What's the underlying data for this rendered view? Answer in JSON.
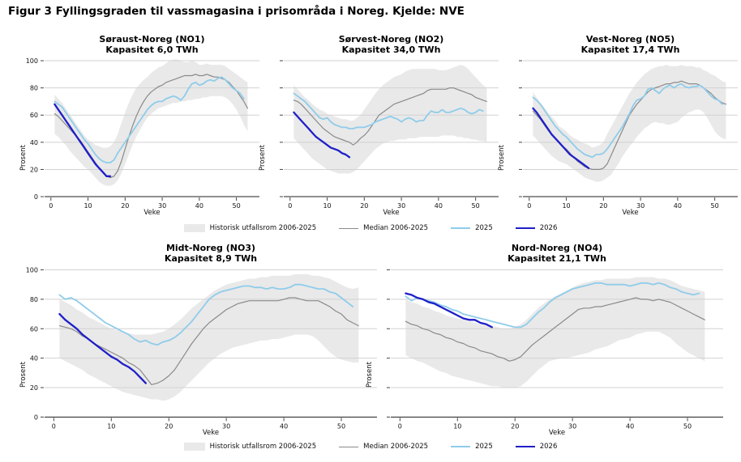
{
  "figure_title": "Figur 3 Fyllingsgraden til vassmagasina i prisområda i Noreg. Kjelde: NVE",
  "axis": {
    "x_label": "Veke",
    "y_label": "Prosent",
    "x_ticks": [
      0,
      10,
      20,
      30,
      40,
      50
    ],
    "y_ticks": [
      0,
      20,
      40,
      60,
      80,
      100
    ],
    "y_range": [
      0,
      100
    ],
    "grid": "horizontal"
  },
  "colors": {
    "band": "#e9e9e9",
    "median": "#8a8a8a",
    "y2025": "#8fccea",
    "y2026": "#1f1fc8",
    "grid": "#d2d2d2",
    "axis_line": "#222222"
  },
  "legend": {
    "items": [
      {
        "label": "Historisk utfallsrom 2006-2025",
        "swatch": "band"
      },
      {
        "label": "Median 2006-2025",
        "swatch": "median"
      },
      {
        "label": "2025",
        "swatch": "y2025"
      },
      {
        "label": "2026",
        "swatch": "y2026"
      }
    ]
  },
  "chart_data": [
    {
      "type": "line+band",
      "title": "Søraust-Noreg (NO1)",
      "subtitle": "Kapasitet 6,0 TWh",
      "week_start": 1,
      "show_y_labels": true,
      "band_lower": [
        46,
        44,
        41,
        38,
        34,
        31,
        28,
        25,
        22,
        20,
        17,
        14,
        11,
        9,
        8,
        8,
        9,
        12,
        17,
        24,
        31,
        38,
        44,
        49,
        54,
        58,
        61,
        63,
        65,
        66,
        67,
        68,
        69,
        69,
        70,
        70,
        71,
        71,
        72,
        72,
        73,
        73,
        74,
        74,
        74,
        74,
        73,
        71,
        68,
        64,
        59,
        53,
        48
      ],
      "band_upper": [
        75,
        72,
        69,
        65,
        61,
        57,
        53,
        49,
        45,
        42,
        40,
        38,
        37,
        36,
        36,
        37,
        40,
        46,
        54,
        62,
        69,
        75,
        80,
        83,
        86,
        88,
        91,
        93,
        95,
        96,
        98,
        100,
        101,
        101,
        100,
        99,
        99,
        100,
        99,
        97,
        97,
        98,
        97,
        97,
        97,
        97,
        96,
        94,
        92,
        90,
        88,
        86,
        84
      ],
      "median": [
        61,
        59,
        56,
        53,
        50,
        47,
        44,
        41,
        37,
        33,
        29,
        25,
        21,
        18,
        15,
        14,
        15,
        19,
        26,
        35,
        44,
        52,
        59,
        65,
        70,
        74,
        77,
        79,
        81,
        82,
        84,
        85,
        86,
        87,
        88,
        89,
        89,
        89,
        90,
        89,
        89,
        90,
        89,
        88,
        88,
        87,
        86,
        84,
        81,
        78,
        74,
        70,
        65
      ],
      "y2025": [
        70,
        68,
        66,
        62,
        58,
        54,
        50,
        46,
        42,
        39,
        35,
        31,
        28,
        26,
        25,
        25,
        27,
        32,
        36,
        40,
        44,
        48,
        52,
        56,
        60,
        64,
        67,
        69,
        70,
        70,
        72,
        73,
        74,
        73,
        71,
        74,
        79,
        83,
        84,
        82,
        83,
        85,
        86,
        85,
        87,
        88,
        86,
        83,
        80,
        78,
        76,
        72
      ],
      "y2026": [
        68,
        64,
        60,
        56,
        52,
        48,
        44,
        40,
        36,
        32,
        28,
        24,
        21,
        18,
        15,
        15
      ]
    },
    {
      "type": "line+band",
      "title": "Sørvest-Noreg (NO2)",
      "subtitle": "Kapasitet 34,0 TWh",
      "week_start": 1,
      "show_y_labels": false,
      "band_lower": [
        43,
        40,
        37,
        34,
        31,
        28,
        26,
        24,
        22,
        20,
        19,
        18,
        17,
        17,
        17,
        17,
        18,
        20,
        23,
        26,
        29,
        32,
        35,
        37,
        39,
        40,
        41,
        41,
        42,
        42,
        42,
        43,
        43,
        43,
        44,
        44,
        44,
        44,
        44,
        44,
        45,
        45,
        45,
        45,
        44,
        44,
        43,
        43,
        42,
        42,
        41,
        41,
        40
      ],
      "band_upper": [
        82,
        79,
        76,
        73,
        71,
        68,
        66,
        64,
        63,
        61,
        60,
        59,
        58,
        57,
        57,
        56,
        56,
        58,
        60,
        64,
        68,
        72,
        76,
        79,
        82,
        84,
        86,
        88,
        89,
        90,
        92,
        93,
        94,
        94,
        94,
        94,
        94,
        94,
        94,
        93,
        93,
        93,
        94,
        95,
        96,
        97,
        96,
        94,
        91,
        88,
        85,
        82,
        80
      ],
      "median": [
        71,
        70,
        68,
        65,
        62,
        59,
        56,
        53,
        50,
        48,
        46,
        44,
        43,
        42,
        41,
        40,
        38,
        40,
        43,
        45,
        48,
        52,
        56,
        60,
        62,
        64,
        66,
        68,
        69,
        70,
        71,
        72,
        73,
        74,
        75,
        76,
        78,
        79,
        79,
        79,
        79,
        79,
        80,
        80,
        79,
        78,
        77,
        76,
        75,
        73,
        72,
        71,
        70
      ],
      "y2025": [
        76,
        74,
        72,
        70,
        67,
        64,
        61,
        58,
        57,
        58,
        55,
        53,
        52,
        51,
        51,
        50,
        50,
        51,
        51,
        51,
        52,
        53,
        55,
        56,
        57,
        58,
        59,
        58,
        57,
        55,
        57,
        58,
        57,
        55,
        56,
        56,
        60,
        63,
        62,
        62,
        64,
        62,
        62,
        63,
        64,
        65,
        64,
        62,
        61,
        62,
        64,
        63
      ],
      "y2026": [
        62,
        59,
        56,
        53,
        50,
        47,
        44,
        42,
        40,
        38,
        36,
        35,
        34,
        32,
        31,
        29
      ]
    },
    {
      "type": "line+band",
      "title": "Vest-Noreg (NO5)",
      "subtitle": "Kapasitet 17,4 TWh",
      "week_start": 1,
      "show_y_labels": false,
      "band_lower": [
        45,
        42,
        39,
        36,
        33,
        30,
        28,
        26,
        25,
        24,
        22,
        20,
        18,
        16,
        14,
        13,
        12,
        11,
        11,
        12,
        14,
        16,
        20,
        24,
        29,
        33,
        37,
        40,
        44,
        47,
        50,
        52,
        54,
        55,
        54,
        54,
        53,
        53,
        54,
        55,
        58,
        60,
        62,
        63,
        64,
        64,
        62,
        58,
        53,
        48,
        45,
        43,
        42
      ],
      "band_upper": [
        77,
        73,
        69,
        66,
        62,
        59,
        56,
        52,
        50,
        48,
        45,
        43,
        42,
        40,
        39,
        38,
        36,
        37,
        38,
        40,
        46,
        51,
        56,
        61,
        66,
        71,
        76,
        80,
        84,
        87,
        90,
        92,
        94,
        95,
        96,
        96,
        97,
        96,
        96,
        96,
        97,
        96,
        96,
        96,
        95,
        95,
        93,
        92,
        90,
        89,
        87,
        85,
        84
      ],
      "median": [
        63,
        60,
        57,
        53,
        49,
        46,
        43,
        40,
        37,
        35,
        32,
        29,
        26,
        24,
        22,
        21,
        20,
        20,
        20,
        21,
        24,
        30,
        36,
        42,
        48,
        54,
        60,
        64,
        68,
        71,
        74,
        77,
        79,
        80,
        81,
        82,
        83,
        83,
        84,
        84,
        85,
        84,
        83,
        83,
        83,
        82,
        80,
        78,
        76,
        73,
        71,
        69,
        68
      ],
      "y2025": [
        73,
        71,
        68,
        64,
        60,
        56,
        52,
        49,
        46,
        44,
        41,
        38,
        35,
        33,
        31,
        30,
        29,
        31,
        31,
        32,
        35,
        39,
        43,
        47,
        51,
        56,
        61,
        67,
        71,
        72,
        74,
        79,
        80,
        78,
        76,
        79,
        81,
        82,
        80,
        82,
        83,
        81,
        80,
        81,
        81,
        82,
        80,
        77,
        74,
        72,
        71,
        68
      ],
      "y2026": [
        65,
        62,
        58,
        54,
        50,
        46,
        43,
        40,
        37,
        34,
        31,
        29,
        27,
        25,
        23,
        21
      ]
    },
    {
      "type": "line+band",
      "title": "Midt-Noreg (NO3)",
      "subtitle": "Kapasitet 8,9 TWh",
      "week_start": 1,
      "show_y_labels": true,
      "band_lower": [
        40,
        38,
        36,
        34,
        32,
        29,
        27,
        25,
        23,
        21,
        19,
        17,
        16,
        15,
        14,
        13,
        12,
        12,
        11,
        12,
        14,
        17,
        21,
        25,
        29,
        33,
        37,
        40,
        43,
        45,
        47,
        48,
        49,
        50,
        51,
        52,
        52,
        53,
        53,
        54,
        55,
        56,
        56,
        56,
        55,
        52,
        48,
        44,
        41,
        39,
        38,
        37,
        37
      ],
      "band_upper": [
        80,
        78,
        76,
        73,
        71,
        68,
        66,
        64,
        62,
        60,
        59,
        58,
        57,
        56,
        56,
        56,
        56,
        57,
        58,
        60,
        63,
        66,
        70,
        74,
        77,
        80,
        83,
        86,
        88,
        90,
        91,
        92,
        93,
        94,
        94,
        95,
        95,
        96,
        96,
        96,
        96,
        97,
        97,
        97,
        96,
        96,
        95,
        94,
        92,
        90,
        88,
        87,
        88
      ],
      "median": [
        62,
        61,
        60,
        58,
        55,
        53,
        50,
        48,
        46,
        44,
        42,
        40,
        37,
        35,
        32,
        27,
        22,
        23,
        25,
        28,
        32,
        38,
        44,
        50,
        55,
        60,
        64,
        67,
        70,
        73,
        75,
        77,
        78,
        79,
        79,
        79,
        79,
        79,
        79,
        80,
        81,
        81,
        80,
        79,
        79,
        79,
        77,
        75,
        72,
        70,
        66,
        64,
        62
      ],
      "y2025": [
        83,
        80,
        81,
        79,
        76,
        73,
        70,
        67,
        64,
        62,
        60,
        58,
        56,
        53,
        51,
        52,
        50,
        49,
        51,
        52,
        54,
        57,
        61,
        65,
        70,
        75,
        80,
        83,
        85,
        86,
        87,
        88,
        89,
        89,
        88,
        88,
        87,
        88,
        87,
        87,
        88,
        90,
        90,
        89,
        88,
        87,
        87,
        85,
        84,
        81,
        78,
        75
      ],
      "y2026": [
        70,
        66,
        63,
        60,
        56,
        53,
        50,
        47,
        44,
        41,
        39,
        36,
        34,
        31,
        27,
        23
      ]
    },
    {
      "type": "line+band",
      "title": "Nord-Noreg (NO4)",
      "subtitle": "Kapasitet 21,1 TWh",
      "week_start": 1,
      "show_y_labels": false,
      "band_lower": [
        42,
        40,
        38,
        37,
        35,
        33,
        31,
        30,
        28,
        27,
        26,
        25,
        24,
        23,
        22,
        21,
        21,
        20,
        20,
        20,
        21,
        24,
        28,
        32,
        35,
        38,
        39,
        40,
        40,
        41,
        42,
        43,
        44,
        46,
        47,
        48,
        50,
        52,
        53,
        54,
        56,
        57,
        58,
        58,
        58,
        56,
        54,
        50,
        47,
        44,
        42,
        40,
        38
      ],
      "band_upper": [
        80,
        78,
        77,
        75,
        74,
        72,
        71,
        69,
        68,
        67,
        66,
        65,
        64,
        63,
        62,
        62,
        61,
        60,
        60,
        61,
        63,
        66,
        70,
        74,
        77,
        80,
        82,
        84,
        86,
        88,
        90,
        91,
        92,
        93,
        93,
        94,
        94,
        94,
        94,
        94,
        95,
        95,
        95,
        95,
        94,
        94,
        93,
        91,
        89,
        88,
        87,
        86,
        85
      ],
      "median": [
        65,
        63,
        62,
        60,
        59,
        57,
        56,
        54,
        53,
        51,
        50,
        48,
        47,
        45,
        44,
        43,
        41,
        40,
        38,
        39,
        41,
        45,
        49,
        52,
        55,
        58,
        61,
        64,
        67,
        70,
        73,
        74,
        74,
        75,
        75,
        76,
        77,
        78,
        79,
        80,
        81,
        80,
        80,
        79,
        80,
        79,
        78,
        76,
        74,
        72,
        70,
        68,
        66
      ],
      "y2025": [
        82,
        79,
        81,
        80,
        79,
        78,
        76,
        75,
        73,
        72,
        70,
        69,
        68,
        67,
        66,
        65,
        64,
        63,
        62,
        61,
        61,
        63,
        67,
        71,
        74,
        78,
        81,
        83,
        85,
        87,
        88,
        89,
        90,
        91,
        91,
        90,
        90,
        90,
        90,
        89,
        90,
        91,
        91,
        90,
        91,
        90,
        88,
        87,
        85,
        84,
        83,
        84
      ],
      "y2026": [
        84,
        83,
        81,
        80,
        78,
        77,
        75,
        73,
        71,
        69,
        67,
        66,
        66,
        64,
        63,
        61
      ]
    }
  ]
}
